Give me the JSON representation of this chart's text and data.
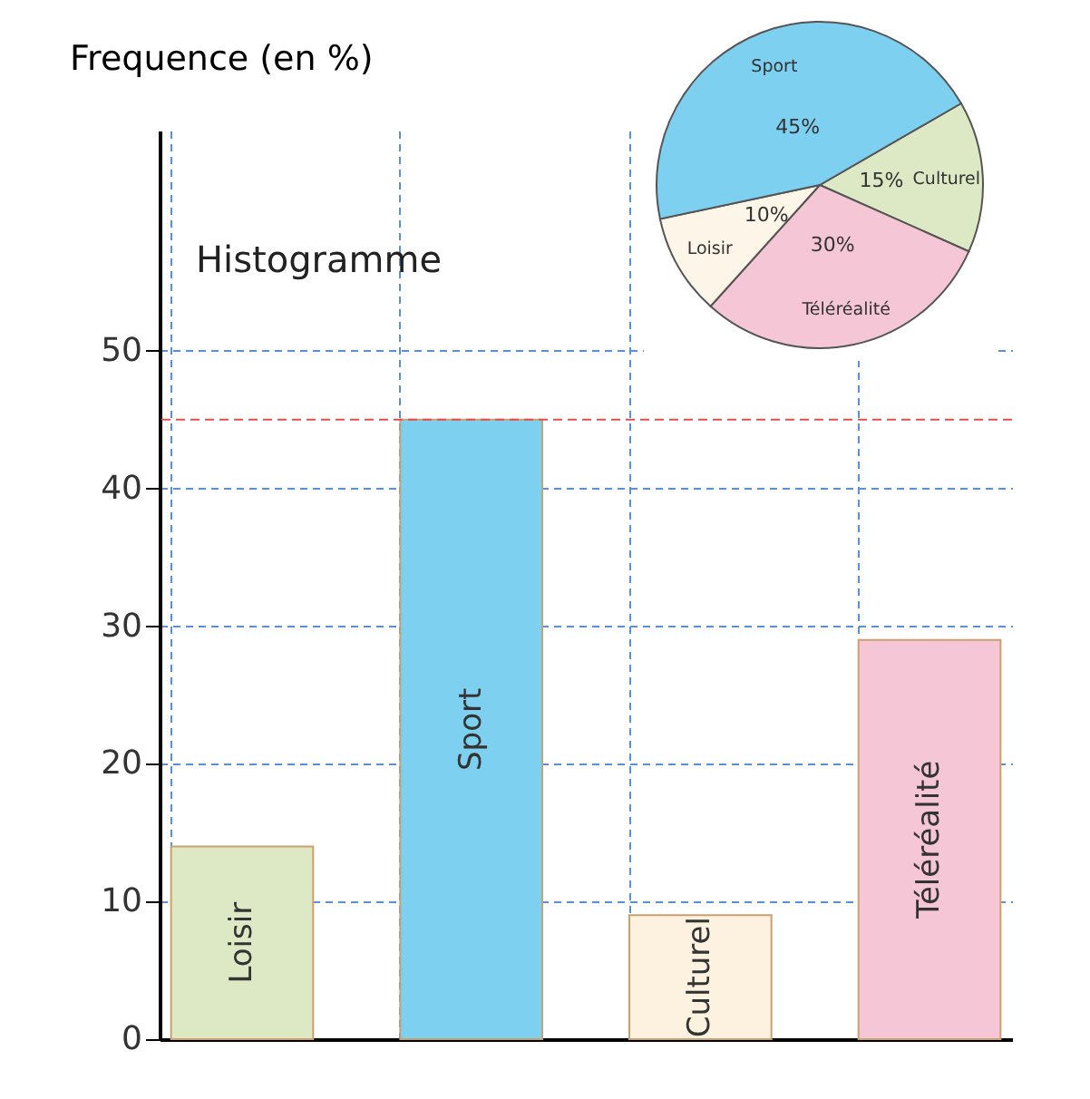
{
  "chart_data": [
    {
      "type": "bar",
      "title": "Histogramme",
      "ylabel": "Frequence (en %)",
      "categories": [
        "Loisir",
        "Sport",
        "Culturel",
        "Téléréalité"
      ],
      "values": [
        14,
        45,
        9,
        29
      ],
      "colors": [
        "#dde8c4",
        "#7dd0f0",
        "#fdf1e0",
        "#f4c6d6"
      ],
      "ylim": [
        0,
        66
      ],
      "yticks": [
        0,
        10,
        20,
        30,
        40,
        50
      ],
      "grid": true,
      "tick_labels": "y",
      "ref_lines": [
        {
          "axis": "y",
          "value": 45,
          "color": "#e05050",
          "line_style": "dashed"
        }
      ]
    },
    {
      "type": "pie",
      "categories": [
        "Culturel",
        "Téléréalité",
        "Loisir",
        "Sport"
      ],
      "values": [
        15,
        30,
        10,
        45
      ],
      "colors": [
        "#dde8c4",
        "#f4c6d6",
        "#fdf6e8",
        "#7dd0f0"
      ],
      "value_labels": [
        "15%",
        "30%",
        "10%",
        "45%"
      ]
    }
  ]
}
